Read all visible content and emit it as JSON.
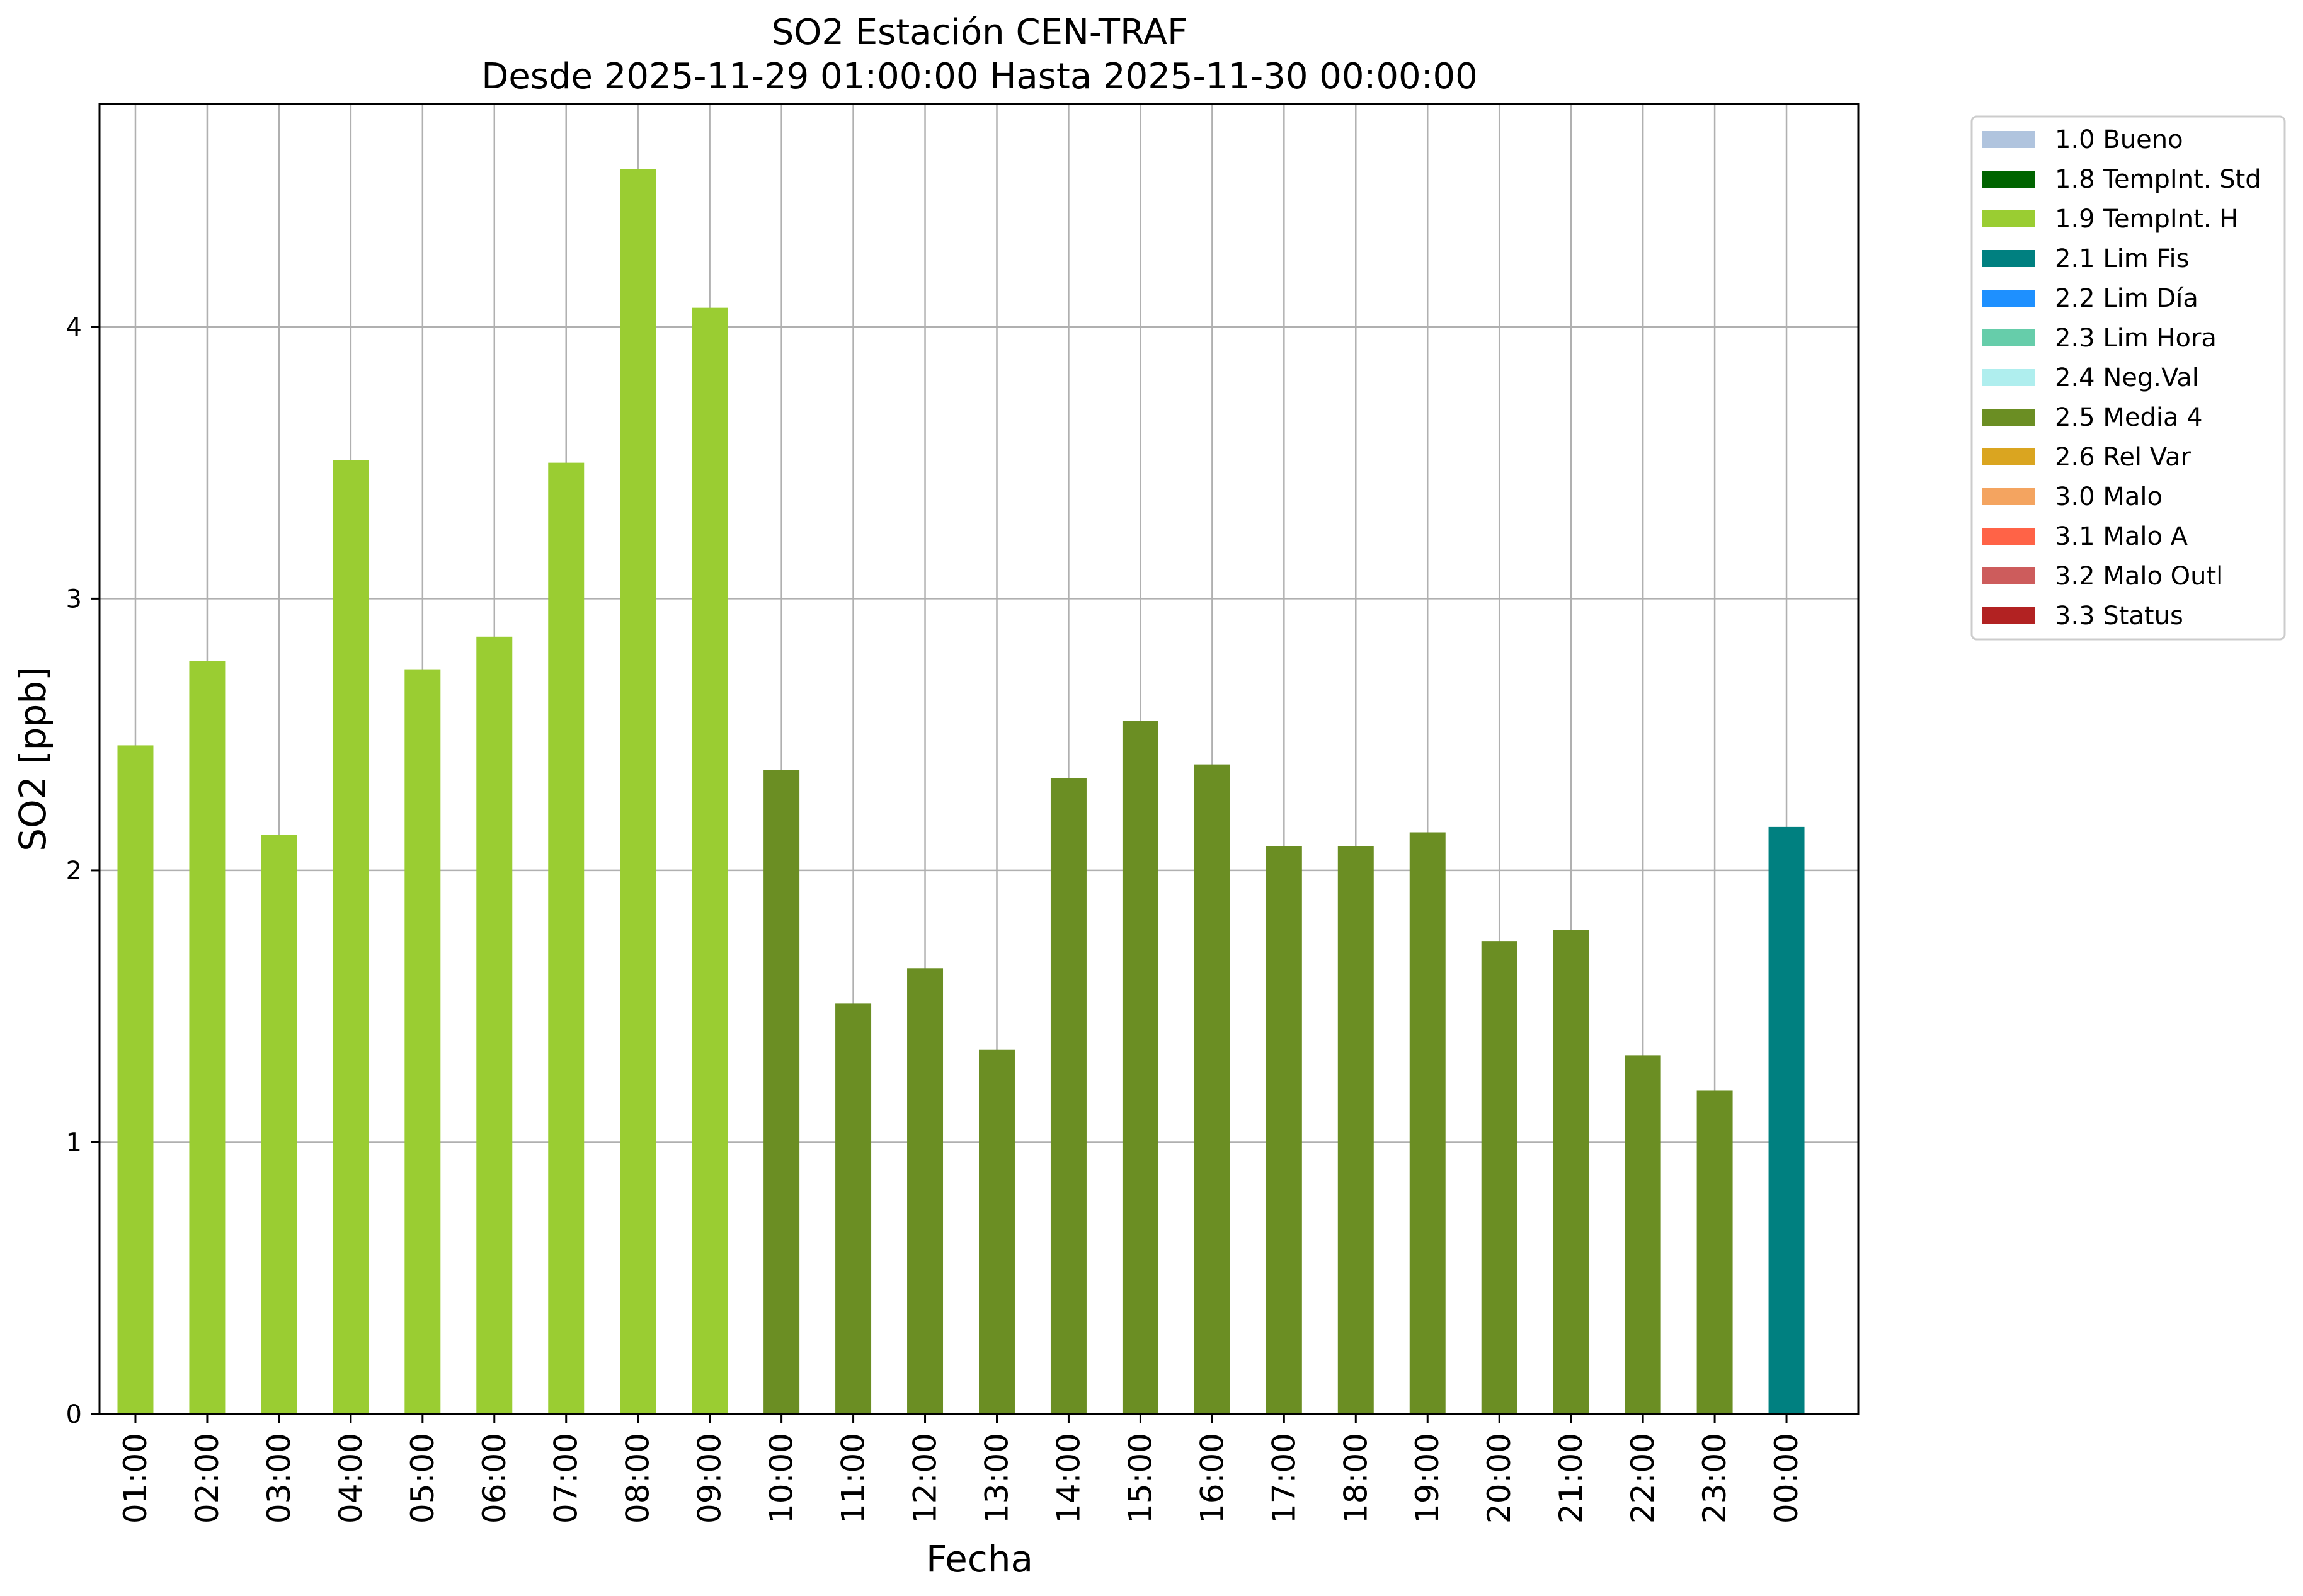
{
  "chart_data": {
    "type": "bar",
    "title": "SO2 Estación CEN-TRAF",
    "subtitle": "Desde 2025-11-29 01:00:00 Hasta 2025-11-30 00:00:00",
    "xlabel": "Fecha",
    "ylabel": "SO2 [ppb]",
    "ylim": [
      0,
      4.82
    ],
    "yticks": [
      "0",
      "1",
      "2",
      "3",
      "4"
    ],
    "grid": true,
    "legend_position": "outside-top-right",
    "categories": [
      "01:00",
      "02:00",
      "03:00",
      "04:00",
      "05:00",
      "06:00",
      "07:00",
      "08:00",
      "09:00",
      "10:00",
      "11:00",
      "12:00",
      "13:00",
      "14:00",
      "15:00",
      "16:00",
      "17:00",
      "18:00",
      "19:00",
      "20:00",
      "21:00",
      "22:00",
      "23:00",
      "00:00"
    ],
    "values": [
      2.46,
      2.77,
      2.13,
      3.51,
      2.74,
      2.86,
      3.5,
      4.58,
      4.07,
      2.37,
      1.51,
      1.64,
      1.34,
      2.34,
      2.55,
      2.39,
      2.09,
      2.09,
      2.14,
      1.74,
      1.78,
      1.32,
      1.19,
      2.16
    ],
    "flags": [
      "1.9 TempInt. H",
      "1.9 TempInt. H",
      "1.9 TempInt. H",
      "1.9 TempInt. H",
      "1.9 TempInt. H",
      "1.9 TempInt. H",
      "1.9 TempInt. H",
      "1.9 TempInt. H",
      "1.9 TempInt. H",
      "2.5 Media 4",
      "2.5 Media 4",
      "2.5 Media 4",
      "2.5 Media 4",
      "2.5 Media 4",
      "2.5 Media 4",
      "2.5 Media 4",
      "2.5 Media 4",
      "2.5 Media 4",
      "2.5 Media 4",
      "2.5 Media 4",
      "2.5 Media 4",
      "2.5 Media 4",
      "2.5 Media 4",
      "2.1 Lim Fis"
    ],
    "legend": [
      {
        "label": "1.0 Bueno",
        "color": "#b0c4de"
      },
      {
        "label": "1.8 TempInt. Std",
        "color": "#006400"
      },
      {
        "label": "1.9 TempInt. H",
        "color": "#9acd32"
      },
      {
        "label": "2.1 Lim Fis",
        "color": "#008080"
      },
      {
        "label": "2.2 Lim Día",
        "color": "#1e90ff"
      },
      {
        "label": "2.3 Lim Hora",
        "color": "#66cdaa"
      },
      {
        "label": "2.4 Neg.Val",
        "color": "#afeeee"
      },
      {
        "label": "2.5 Media 4",
        "color": "#6b8e23"
      },
      {
        "label": "2.6 Rel Var",
        "color": "#daa520"
      },
      {
        "label": "3.0 Malo",
        "color": "#f4a460"
      },
      {
        "label": "3.1 Malo A",
        "color": "#ff6347"
      },
      {
        "label": "3.2 Malo Outl",
        "color": "#cd5c5c"
      },
      {
        "label": "3.3 Status",
        "color": "#b22222"
      }
    ]
  }
}
